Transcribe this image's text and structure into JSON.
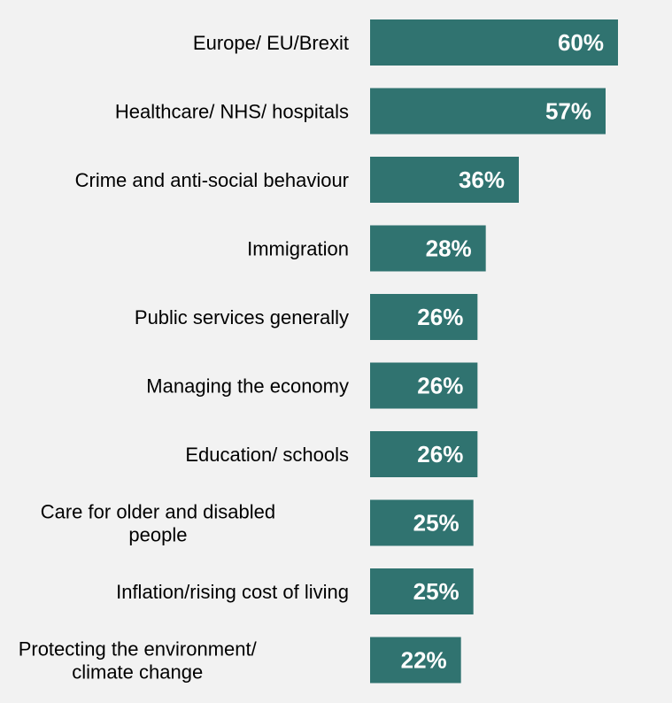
{
  "chart_data": {
    "type": "bar",
    "orientation": "horizontal",
    "categories": [
      [
        "Europe/ EU/Brexit"
      ],
      [
        "Healthcare/ NHS/ hospitals"
      ],
      [
        "Crime and anti-social behaviour"
      ],
      [
        "Immigration"
      ],
      [
        "Public services generally"
      ],
      [
        "Managing the economy"
      ],
      [
        "Education/ schools"
      ],
      [
        "Care for older and disabled",
        "people"
      ],
      [
        "Inflation/rising cost of living"
      ],
      [
        "Protecting the environment/",
        "climate change"
      ]
    ],
    "values": [
      60,
      57,
      36,
      28,
      26,
      26,
      26,
      25,
      25,
      22
    ],
    "value_labels": [
      "60%",
      "57%",
      "36%",
      "28%",
      "26%",
      "26%",
      "26%",
      "25%",
      "25%",
      "22%"
    ],
    "unit": "%",
    "title": "",
    "xlabel": "",
    "ylabel": "",
    "xlim": [
      0,
      100
    ],
    "grid": false,
    "bar_color": "#307370",
    "background_color": "#f2f2f2",
    "label_color": "#ffffff"
  }
}
